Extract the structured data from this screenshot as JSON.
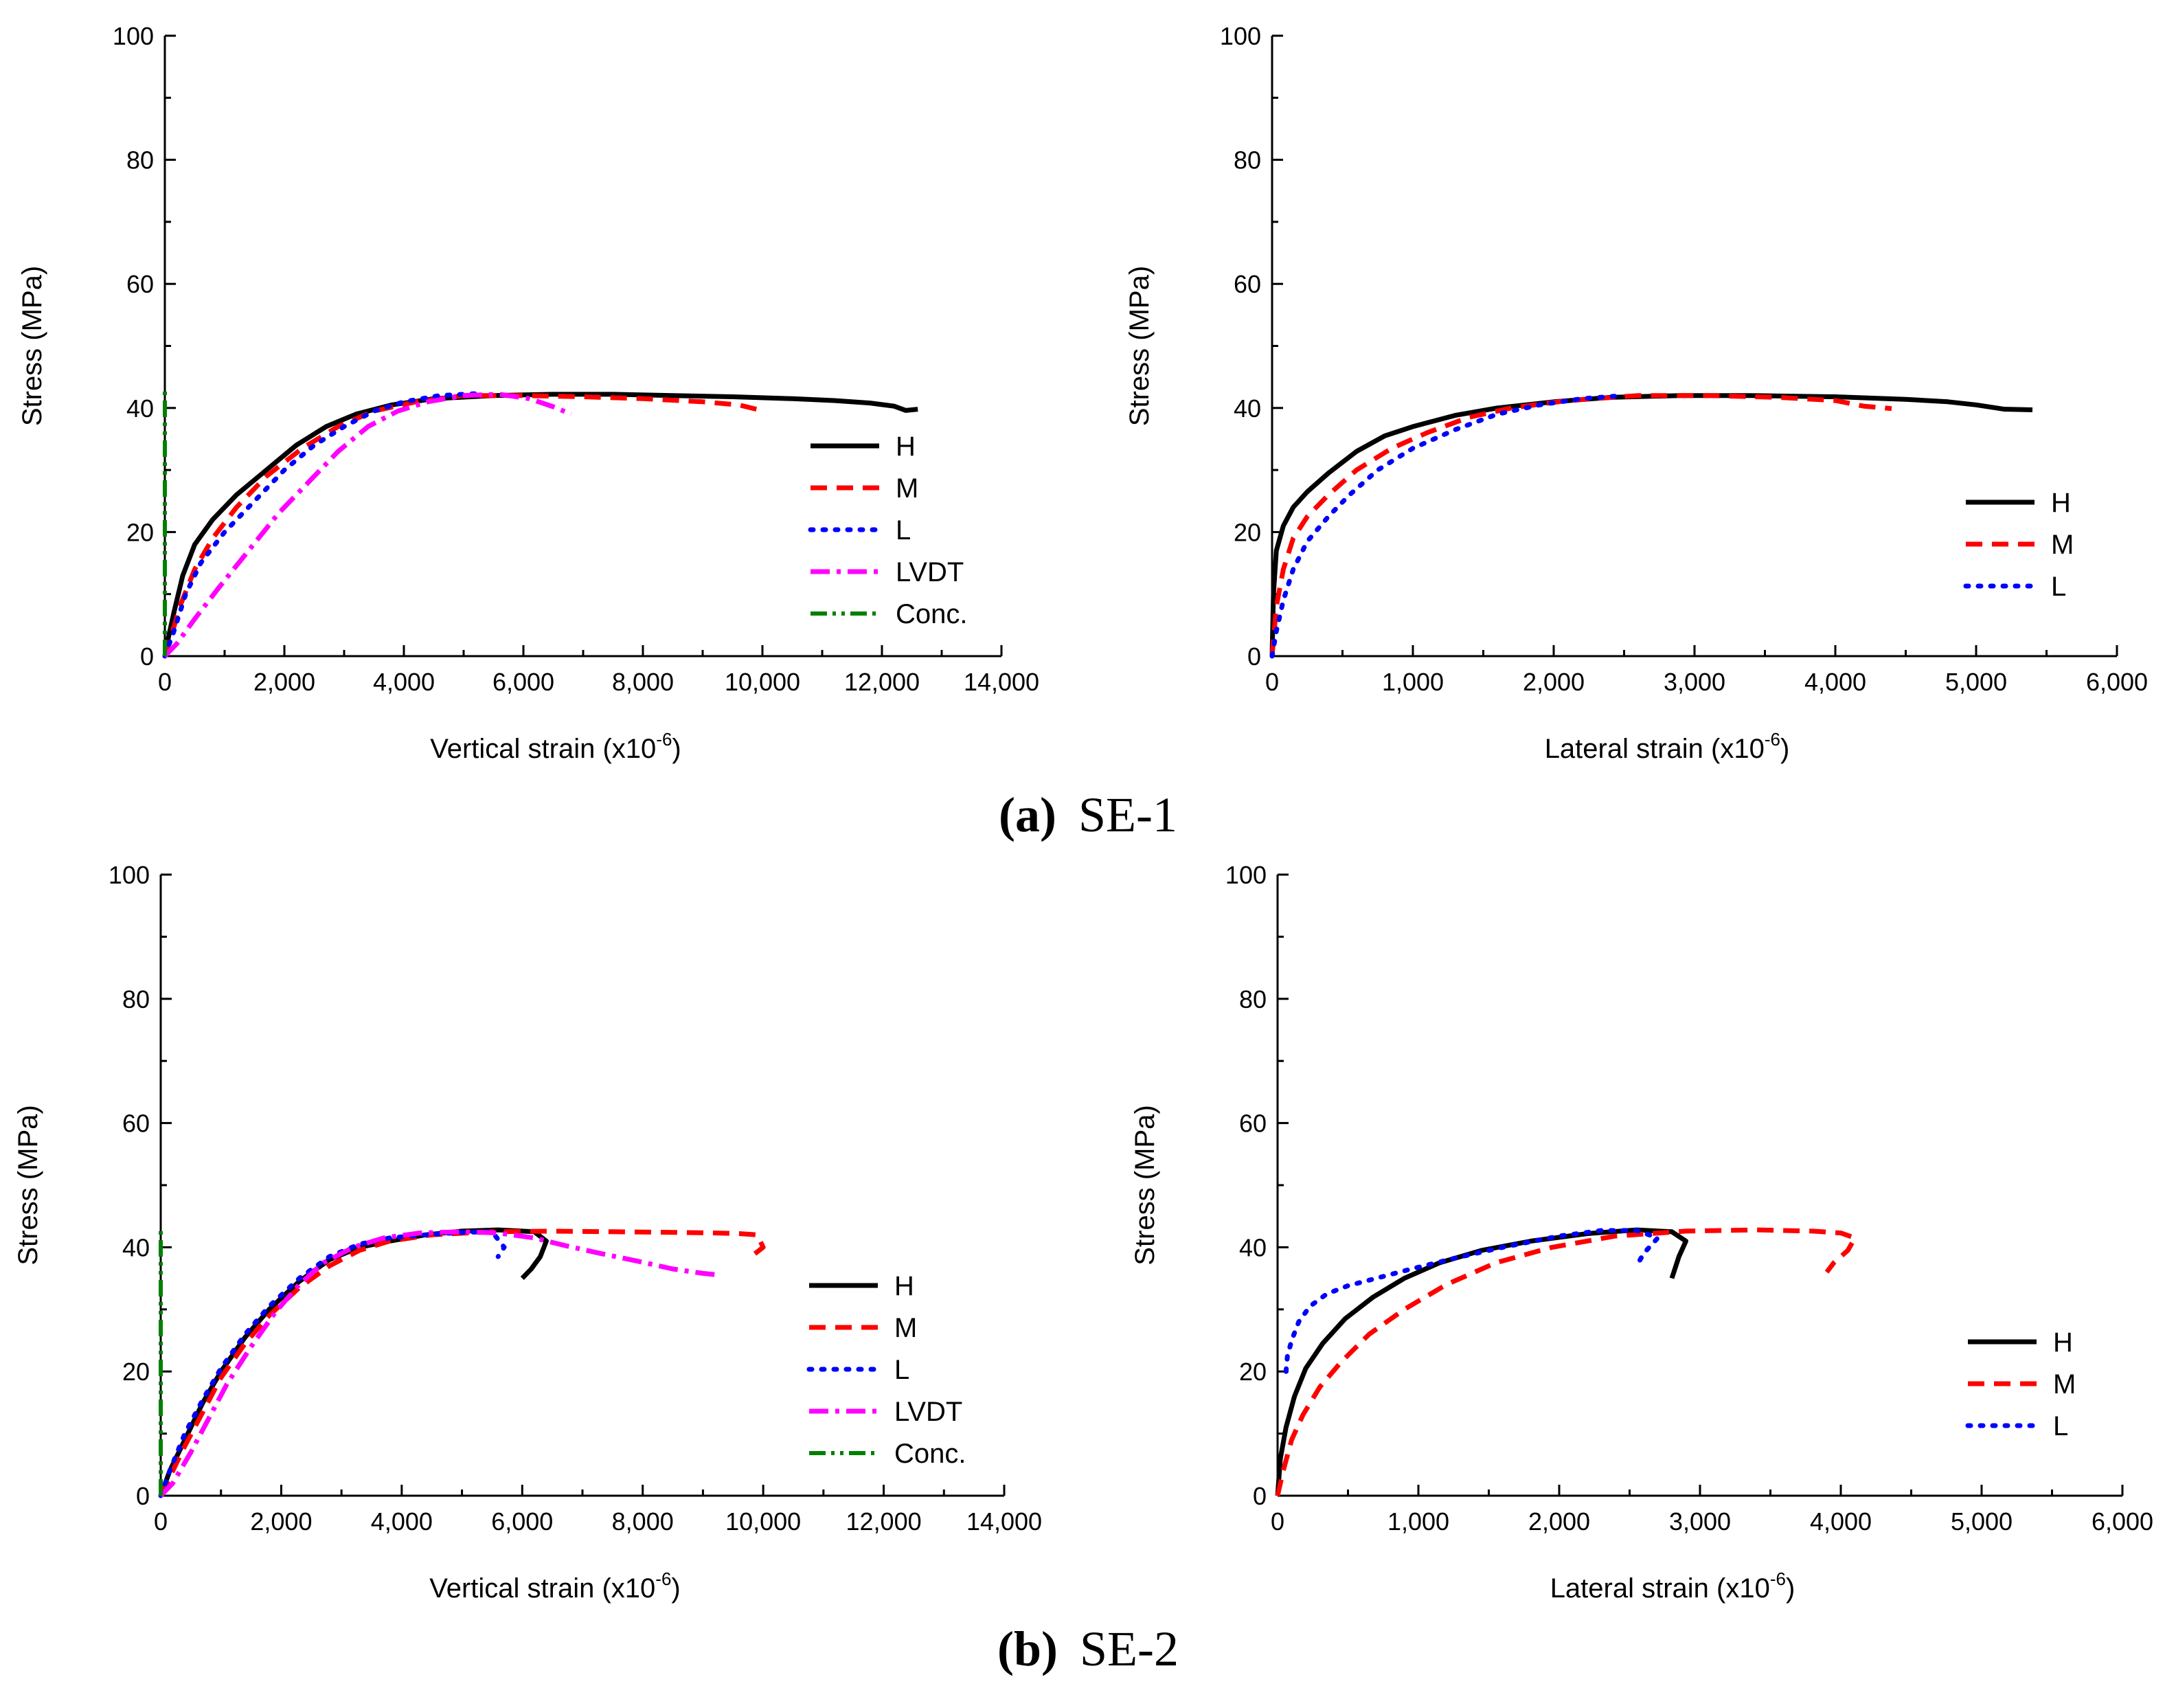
{
  "panels": [
    {
      "caption_letter": "(a)",
      "caption_label": "SE-1",
      "charts": [
        {
          "type": "line",
          "xlabel": "Vertical strain (x10",
          "xlabel_exp": "-6",
          "xlabel_close": ")",
          "ylabel": "Stress (MPa)",
          "xlim": [
            0,
            14000
          ],
          "ylim": [
            0,
            100
          ],
          "xticks": [
            0,
            2000,
            4000,
            6000,
            8000,
            10000,
            12000,
            14000
          ],
          "xtick_labels": [
            "0",
            "2,000",
            "4,000",
            "6,000",
            "8,000",
            "10,000",
            "12,000",
            "14,000"
          ],
          "yticks": [
            0,
            20,
            40,
            60,
            80,
            100
          ],
          "ytick_labels": [
            "0",
            "20",
            "40",
            "60",
            "80",
            "100"
          ],
          "legend_position": "right-middle",
          "series": [
            {
              "name": "H",
              "style": "solid",
              "color": "#000000",
              "x": [
                0,
                60,
                150,
                300,
                500,
                800,
                1200,
                1700,
                2200,
                2700,
                3200,
                3800,
                4500,
                5500,
                6500,
                7500,
                8500,
                9500,
                10500,
                11200,
                11800,
                12200,
                12400,
                12600
              ],
              "y": [
                0,
                3,
                7,
                13,
                18,
                22,
                26,
                30,
                34,
                37,
                39,
                40.5,
                41.5,
                42,
                42.2,
                42.2,
                42,
                41.8,
                41.5,
                41.2,
                40.8,
                40.3,
                39.6,
                39.8
              ]
            },
            {
              "name": "M",
              "style": "dashed",
              "color": "#ff0000",
              "x": [
                0,
                100,
                250,
                500,
                800,
                1200,
                1700,
                2300,
                2900,
                3500,
                4200,
                5000,
                6000,
                7000,
                8000,
                9000,
                9600,
                9900
              ],
              "y": [
                0,
                3,
                8,
                14,
                19,
                24,
                29,
                33.5,
                37,
                39.5,
                41,
                42,
                42,
                41.8,
                41.5,
                41,
                40.5,
                39.8
              ]
            },
            {
              "name": "L",
              "style": "dotted",
              "color": "#0000ff",
              "x": [
                0,
                150,
                350,
                600,
                1000,
                1500,
                2000,
                2500,
                3000,
                3500,
                4000,
                4600,
                5200
              ],
              "y": [
                0,
                4,
                10,
                15,
                20,
                25,
                30,
                34,
                37,
                39.5,
                41,
                42,
                42.3
              ]
            },
            {
              "name": "LVDT",
              "style": "dashdot",
              "color": "#ff00ff",
              "x": [
                0,
                200,
                500,
                900,
                1400,
                1900,
                2400,
                2900,
                3400,
                3900,
                4400,
                5000,
                5600,
                6100,
                6500,
                6800
              ],
              "y": [
                0,
                2,
                6,
                11,
                17,
                23,
                28,
                33,
                37,
                39.5,
                41,
                42,
                42.2,
                41.5,
                40.2,
                39
              ]
            },
            {
              "name": "Conc.",
              "style": "dashdotdot",
              "color": "#008000",
              "x": [
                0,
                0,
                0,
                0
              ],
              "y": [
                0,
                14,
                28,
                43
              ]
            }
          ]
        },
        {
          "type": "line",
          "xlabel": "Lateral strain (x10",
          "xlabel_exp": "-6",
          "xlabel_close": ")",
          "ylabel": "Stress (MPa)",
          "xlim": [
            0,
            6000
          ],
          "ylim": [
            0,
            100
          ],
          "xticks": [
            0,
            1000,
            2000,
            3000,
            4000,
            5000,
            6000
          ],
          "xtick_labels": [
            "0",
            "1,000",
            "2,000",
            "3,000",
            "4,000",
            "5,000",
            "6,000"
          ],
          "yticks": [
            0,
            20,
            40,
            60,
            80,
            100
          ],
          "ytick_labels": [
            "0",
            "20",
            "40",
            "60",
            "80",
            "100"
          ],
          "legend_position": "bottom-right",
          "series": [
            {
              "name": "H",
              "style": "solid",
              "color": "#000000",
              "x": [
                0,
                10,
                30,
                80,
                150,
                250,
                400,
                600,
                800,
                1000,
                1300,
                1600,
                2000,
                2400,
                2900,
                3400,
                4000,
                4500,
                4800,
                5000,
                5200,
                5400
              ],
              "y": [
                0,
                10,
                17,
                21,
                24,
                26.5,
                29.5,
                33,
                35.5,
                37,
                38.8,
                40,
                41,
                41.7,
                42,
                42,
                41.8,
                41.4,
                41,
                40.5,
                39.8,
                39.7
              ]
            },
            {
              "name": "M",
              "style": "dashed",
              "color": "#ff0000",
              "x": [
                0,
                30,
                80,
                150,
                250,
                400,
                600,
                850,
                1100,
                1400,
                1700,
                2100,
                2600,
                3100,
                3600,
                4000,
                4200,
                4400
              ],
              "y": [
                0,
                8,
                14,
                19,
                22.5,
                26,
                30,
                33.5,
                36,
                38.5,
                40,
                41.2,
                42,
                42,
                41.7,
                41.2,
                40.3,
                39.9
              ]
            },
            {
              "name": "L",
              "style": "dotted",
              "color": "#0000ff",
              "x": [
                0,
                30,
                80,
                150,
                250,
                400,
                550,
                750,
                1000,
                1300,
                1600,
                1900,
                2200,
                2500
              ],
              "y": [
                0,
                4,
                9,
                14,
                18.5,
                22.5,
                26,
                30,
                33.5,
                36.5,
                39,
                40.5,
                41.5,
                42
              ]
            }
          ]
        }
      ]
    },
    {
      "caption_letter": "(b)",
      "caption_label": "SE-2",
      "charts": [
        {
          "type": "line",
          "xlabel": "Vertical strain (x10",
          "xlabel_exp": "-6",
          "xlabel_close": ")",
          "ylabel": "Stress (MPa)",
          "xlim": [
            0,
            14000
          ],
          "ylim": [
            0,
            100
          ],
          "xticks": [
            0,
            2000,
            4000,
            6000,
            8000,
            10000,
            12000,
            14000
          ],
          "xtick_labels": [
            "0",
            "2,000",
            "4,000",
            "6,000",
            "8,000",
            "10,000",
            "12,000",
            "14,000"
          ],
          "yticks": [
            0,
            20,
            40,
            60,
            80,
            100
          ],
          "ytick_labels": [
            "0",
            "20",
            "40",
            "60",
            "80",
            "100"
          ],
          "legend_position": "right-middle",
          "series": [
            {
              "name": "H",
              "style": "solid",
              "color": "#000000",
              "x": [
                0,
                150,
                400,
                700,
                1000,
                1400,
                1800,
                2300,
                2800,
                3300,
                3800,
                4400,
                5000,
                5600,
                6200,
                6400,
                6300,
                6150,
                6000
              ],
              "y": [
                0,
                4,
                9,
                15,
                20,
                25.5,
                30,
                34.5,
                38,
                40,
                41,
                42,
                42.6,
                42.8,
                42.5,
                41,
                38.5,
                36.5,
                35
              ]
            },
            {
              "name": "M",
              "style": "dashed",
              "color": "#ff0000",
              "x": [
                0,
                150,
                400,
                700,
                1000,
                1400,
                1800,
                2300,
                2800,
                3300,
                3800,
                4500,
                5500,
                6500,
                7500,
                8500,
                9200,
                9600,
                9900,
                10000,
                9800
              ],
              "y": [
                0,
                3,
                8,
                13.5,
                19,
                24.5,
                29,
                33.5,
                37,
                39.5,
                41,
                42,
                42.5,
                42.6,
                42.5,
                42.4,
                42.3,
                42.2,
                42,
                40,
                38.5
              ]
            },
            {
              "name": "L",
              "style": "dotted",
              "color": "#0000ff",
              "x": [
                0,
                150,
                400,
                700,
                1000,
                1400,
                1800,
                2300,
                2800,
                3300,
                3800,
                4400,
                5000,
                5500,
                5700,
                5600
              ],
              "y": [
                0,
                4,
                10,
                15.5,
                20.5,
                26,
                30.5,
                35,
                38.5,
                40.5,
                41.5,
                42,
                42.4,
                42.5,
                40,
                38.5
              ]
            },
            {
              "name": "LVDT",
              "style": "dashdot",
              "color": "#ff00ff",
              "x": [
                0,
                200,
                500,
                800,
                1100,
                1500,
                1900,
                2300,
                2700,
                3200,
                3700,
                4300,
                5000,
                5600,
                6200,
                6700,
                7300,
                7900,
                8500,
                9000,
                9300
              ],
              "y": [
                0,
                2,
                7,
                12.5,
                18,
                24,
                29.5,
                34,
                37.5,
                40,
                41.5,
                42.3,
                42.5,
                42.3,
                41.5,
                40.3,
                39,
                37.8,
                36.5,
                35.8,
                35.5
              ]
            },
            {
              "name": "Conc.",
              "style": "dashdotdot",
              "color": "#008000",
              "x": [
                0,
                0,
                0,
                0
              ],
              "y": [
                0,
                14,
                28,
                43
              ]
            }
          ]
        },
        {
          "type": "line",
          "xlabel": "Lateral strain (x10",
          "xlabel_exp": "-6",
          "xlabel_close": ")",
          "ylabel": "Stress (MPa)",
          "xlim": [
            0,
            6000
          ],
          "ylim": [
            0,
            100
          ],
          "xticks": [
            0,
            1000,
            2000,
            3000,
            4000,
            5000,
            6000
          ],
          "xtick_labels": [
            "0",
            "1,000",
            "2,000",
            "3,000",
            "4,000",
            "5,000",
            "6,000"
          ],
          "yticks": [
            0,
            20,
            40,
            60,
            80,
            100
          ],
          "ytick_labels": [
            "0",
            "20",
            "40",
            "60",
            "80",
            "100"
          ],
          "legend_position": "bottom-right",
          "series": [
            {
              "name": "H",
              "style": "solid",
              "color": "#000000",
              "x": [
                0,
                20,
                60,
                120,
                200,
                320,
                480,
                680,
                900,
                1150,
                1450,
                1800,
                2200,
                2550,
                2800,
                2900,
                2850,
                2800
              ],
              "y": [
                0,
                6,
                11,
                16,
                20.5,
                24.5,
                28.5,
                32,
                35,
                37.5,
                39.5,
                41,
                42.2,
                42.8,
                42.5,
                41,
                38.5,
                35
              ]
            },
            {
              "name": "M",
              "style": "dashed",
              "color": "#ff0000",
              "x": [
                0,
                40,
                100,
                180,
                300,
                450,
                650,
                900,
                1200,
                1550,
                1950,
                2400,
                2900,
                3400,
                3800,
                4000,
                4100,
                4050,
                3950,
                3900
              ],
              "y": [
                0,
                4,
                9,
                13,
                17.5,
                21.5,
                26,
                30,
                34,
                37.5,
                40,
                41.8,
                42.6,
                42.8,
                42.6,
                42.3,
                41.5,
                39.5,
                37.5,
                36
              ]
            },
            {
              "name": "L",
              "style": "dotted",
              "color": "#0000ff",
              "x": [
                60,
                70,
                100,
                150,
                230,
                350,
                500,
                700,
                950,
                1250,
                1600,
                2000,
                2300,
                2550,
                2700,
                2600,
                2550
              ],
              "y": [
                20,
                22.5,
                25,
                28,
                30.5,
                32.5,
                33.8,
                35,
                36.5,
                38.2,
                40,
                41.8,
                42.7,
                42.7,
                41.5,
                39,
                37
              ]
            }
          ]
        }
      ]
    }
  ]
}
